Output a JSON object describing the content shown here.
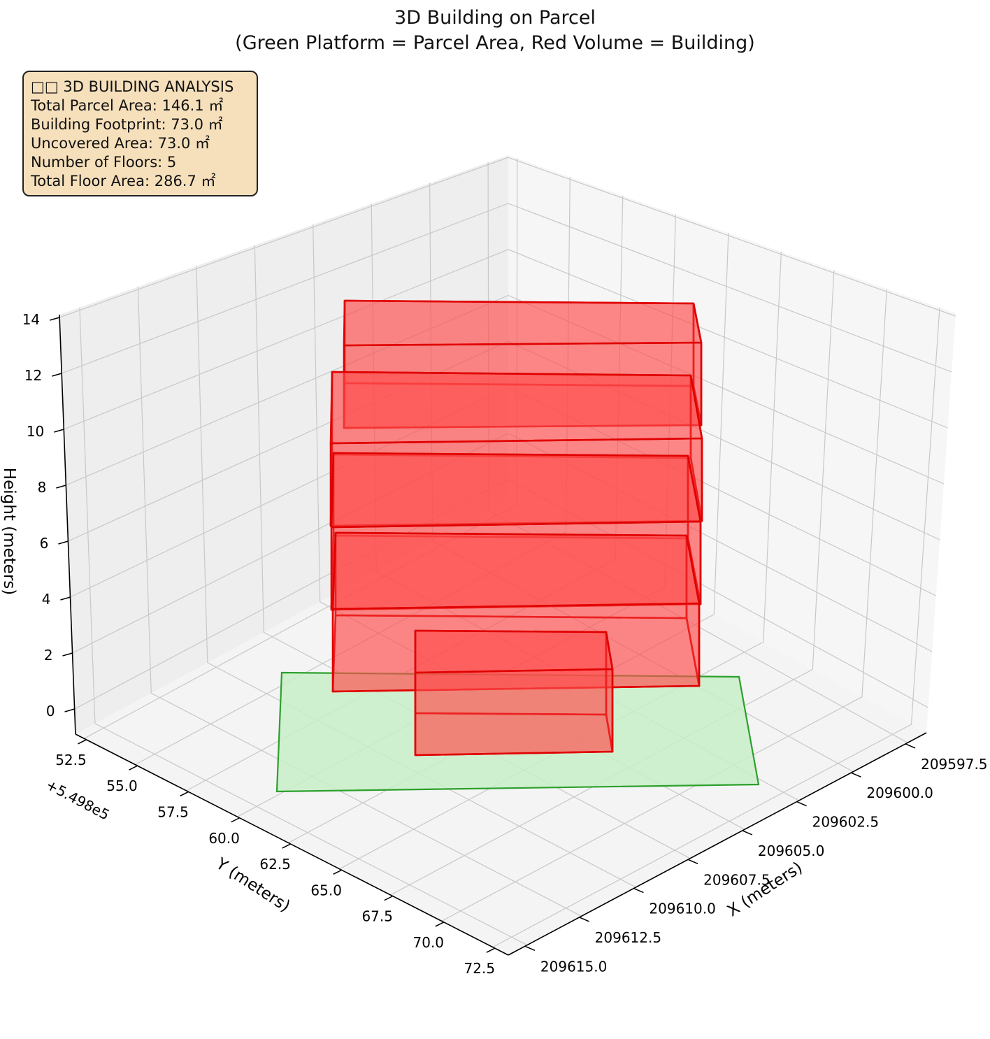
{
  "title_line1": "3D Building on Parcel",
  "title_line2": "(Green Platform = Parcel Area, Red Volume = Building)",
  "info_box": {
    "heading": "□□ 3D BUILDING ANALYSIS",
    "lines": [
      "Total Parcel Area: 146.1 ㎡",
      "Building Footprint: 73.0 ㎡",
      "Uncovered Area: 73.0 ㎡",
      "Number of Floors: 5",
      "Total Floor Area: 286.7 ㎡"
    ]
  },
  "colors": {
    "parcel_fill": "#c8efc8",
    "parcel_edge": "#2ca02c",
    "building_fill": "#ff4d4d",
    "building_edge": "#e00000",
    "pane": "#f2f2f2",
    "grid": "#c8c8c8"
  },
  "chart_data": {
    "type": "3d-volume",
    "title": "3D Building on Parcel\n(Green Platform = Parcel Area, Red Volume = Building)",
    "xlabel": "X (meters)",
    "ylabel": "Y (meters)",
    "zlabel": "Height (meters)",
    "y_offset_label": "+5.498e5",
    "xticks": [
      "209597.5",
      "209600.0",
      "209602.5",
      "209605.0",
      "209607.5",
      "209610.0",
      "209612.5",
      "209615.0"
    ],
    "yticks": [
      "52.5",
      "55.0",
      "57.5",
      "60.0",
      "62.5",
      "65.0",
      "67.5",
      "70.0",
      "72.5"
    ],
    "zticks": [
      "0",
      "2",
      "4",
      "6",
      "8",
      "10",
      "12",
      "14"
    ],
    "floors": 5,
    "parcel_area_m2": 146.1,
    "building_footprint_m2": 73.0,
    "uncovered_area_m2": 73.0,
    "total_floor_area_m2": 286.7,
    "grid": true
  }
}
